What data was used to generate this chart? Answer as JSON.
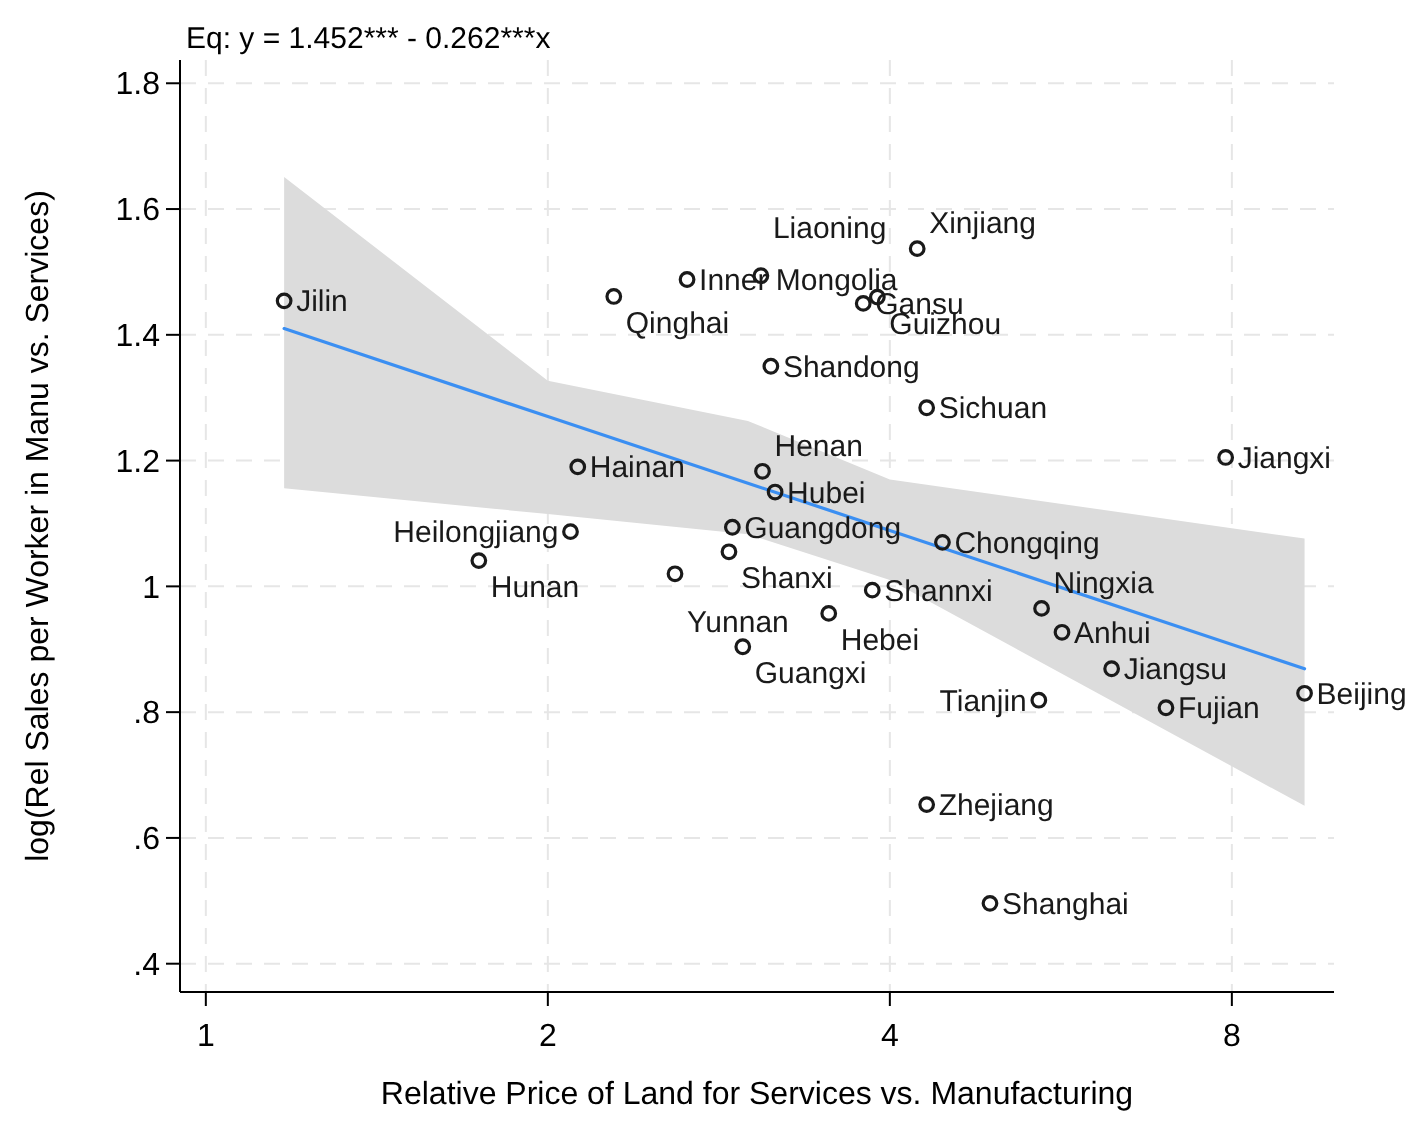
{
  "chart_data": {
    "type": "scatter",
    "title": "Eq: y = 1.452*** - 0.262***x",
    "xlabel": "Relative Price of Land for Services vs. Manufacturing",
    "ylabel": "log(Rel Sales per Worker in Manu vs. Services)",
    "xlim": [
      0.949,
      9.84
    ],
    "ylim": [
      0.355,
      1.837
    ],
    "log": "x",
    "xticks": [
      1,
      2,
      4,
      8
    ],
    "yticks": [
      {
        "value": 0.4,
        "label": ".4"
      },
      {
        "value": 0.6,
        "label": ".6"
      },
      {
        "value": 0.8,
        "label": ".8"
      },
      1,
      {
        "value": 1.2,
        "label": "1.2"
      },
      {
        "value": 1.4,
        "label": "1.4"
      },
      {
        "value": 1.6,
        "label": "1.6"
      },
      {
        "value": 1.8,
        "label": "1.8"
      }
    ],
    "grid": true,
    "series": [
      {
        "type": "line",
        "color": "#3b8ff2",
        "marker": "none",
        "line_style": "solid",
        "x": [
          1.172,
          2,
          3,
          4,
          9.27
        ],
        "values": [
          1.41,
          1.27,
          1.164,
          1.089,
          0.869
        ],
        "lower": [
          1.156,
          1.115,
          1.083,
          1.01,
          0.651
        ],
        "upper": [
          1.651,
          1.327,
          1.263,
          1.17,
          1.076
        ]
      },
      {
        "color": "#1a1a1a",
        "marker": "circle",
        "x": [
          1.172,
          2.286,
          2.652,
          3.08,
          3.143,
          2.125,
          3.09,
          3.17,
          2.094,
          1.739,
          2.907,
          2.887,
          2.588,
          2.969,
          3.534,
          4.228,
          3.9,
          3.79,
          4.31,
          7.9,
          4.45,
          3.86,
          5.44,
          5.67,
          6.27,
          5.41,
          7.0,
          9.27,
          4.31,
          4.9
        ],
        "values": [
          1.454,
          1.461,
          1.488,
          1.494,
          1.35,
          1.19,
          1.183,
          1.15,
          1.087,
          1.041,
          1.094,
          1.055,
          1.02,
          0.904,
          0.957,
          1.537,
          1.46,
          1.45,
          1.284,
          1.205,
          1.07,
          0.994,
          0.965,
          0.927,
          0.869,
          0.819,
          0.807,
          0.83,
          0.653,
          0.496
        ],
        "value_labels": [
          "Jilin",
          "Qinghai",
          "Inner Mongolia",
          "Liaoning",
          "Shandong",
          "Hainan",
          "Henan",
          "Hubei",
          "Heilongjiang",
          "Hunan",
          "Guangdong",
          "Shanxi",
          "Yunnan",
          "Guangxi",
          "Hebei",
          "Xinjiang",
          "Guizhou",
          "Gansu",
          "Sichuan",
          "Jiangxi",
          "Chongqing",
          "Shannxi",
          "Ningxia",
          "Anhui",
          "Jiangsu",
          "Tianjin",
          "Fujian",
          "Beijing",
          "Zhejiang",
          "Shanghai"
        ]
      }
    ]
  }
}
